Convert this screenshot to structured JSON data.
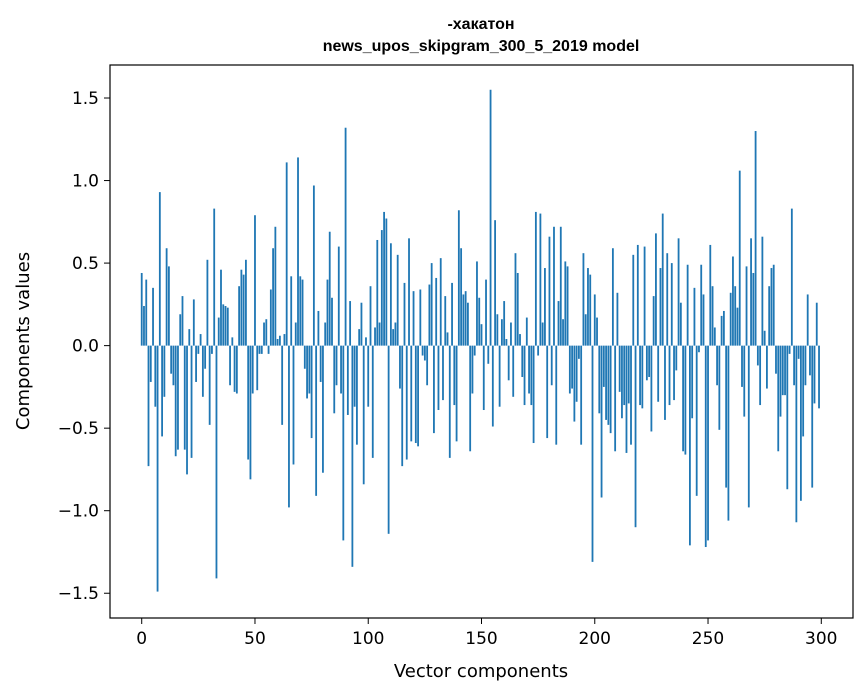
{
  "chart_data": {
    "type": "bar",
    "title": "-хакатон",
    "subtitle": "news_upos_skipgram_300_5_2019 model",
    "xlabel": "Vector components",
    "ylabel": "Components values",
    "xlim": [
      -14,
      314
    ],
    "ylim": [
      -1.65,
      1.7
    ],
    "xticks": [
      0,
      50,
      100,
      150,
      200,
      250,
      300
    ],
    "xtick_labels": [
      "0",
      "50",
      "100",
      "150",
      "200",
      "250",
      "300"
    ],
    "yticks": [
      1.5,
      1.0,
      0.5,
      0.0,
      -0.5,
      -1.0,
      -1.5
    ],
    "ytick_labels": [
      "1.5",
      "1.0",
      "0.5",
      "0.0",
      "−0.5",
      "−1.0",
      "−1.5"
    ],
    "grid": false,
    "series": [
      {
        "name": "components",
        "color": "#1f77b4",
        "x_start": 0,
        "values": [
          0.44,
          0.24,
          0.4,
          -0.73,
          -0.22,
          0.35,
          -0.37,
          -1.49,
          0.93,
          -0.55,
          -0.31,
          0.59,
          0.48,
          -0.17,
          -0.24,
          -0.67,
          -0.63,
          0.19,
          0.3,
          -0.63,
          -0.78,
          0.1,
          -0.68,
          0.28,
          -0.22,
          -0.05,
          0.07,
          -0.31,
          -0.14,
          0.52,
          -0.48,
          -0.05,
          0.83,
          -1.41,
          0.17,
          0.46,
          0.25,
          0.24,
          0.23,
          -0.24,
          0.05,
          -0.28,
          -0.29,
          0.36,
          0.46,
          0.43,
          0.52,
          -0.69,
          -0.81,
          -0.29,
          0.79,
          -0.27,
          -0.05,
          -0.05,
          0.14,
          0.16,
          -0.05,
          0.34,
          0.59,
          0.72,
          0.04,
          0.06,
          -0.48,
          0.07,
          1.11,
          -0.98,
          0.42,
          -0.72,
          0.14,
          1.14,
          0.42,
          0.4,
          -0.14,
          -0.32,
          -0.29,
          -0.56,
          0.97,
          -0.91,
          0.21,
          -0.22,
          -0.77,
          0.14,
          0.4,
          0.69,
          0.29,
          -0.41,
          -0.24,
          0.6,
          -0.29,
          -1.18,
          1.32,
          -0.42,
          0.27,
          -1.34,
          -0.37,
          -0.6,
          0.1,
          0.26,
          -0.84,
          0.05,
          -0.37,
          0.36,
          -0.68,
          0.11,
          0.64,
          0.14,
          0.7,
          0.81,
          0.77,
          -1.14,
          0.62,
          0.1,
          0.14,
          0.55,
          -0.26,
          -0.73,
          0.38,
          -0.69,
          0.65,
          -0.58,
          0.33,
          -0.59,
          -0.61,
          0.34,
          -0.06,
          -0.09,
          -0.24,
          0.37,
          0.5,
          -0.53,
          0.41,
          -0.39,
          0.53,
          -0.33,
          0.3,
          0.08,
          -0.68,
          0.38,
          -0.36,
          -0.58,
          0.82,
          0.59,
          0.31,
          0.33,
          0.26,
          -0.64,
          -0.29,
          -0.06,
          0.51,
          0.29,
          0.13,
          -0.39,
          0.4,
          -0.11,
          1.55,
          -0.49,
          0.76,
          0.19,
          -0.37,
          0.16,
          0.27,
          0.04,
          -0.21,
          0.14,
          -0.31,
          0.56,
          0.44,
          0.07,
          -0.19,
          -0.36,
          0.17,
          -0.29,
          -0.36,
          -0.59,
          0.81,
          -0.06,
          0.8,
          0.14,
          0.47,
          -0.56,
          0.66,
          -0.24,
          0.72,
          -0.6,
          0.27,
          0.72,
          0.16,
          0.51,
          0.48,
          -0.29,
          -0.26,
          -0.46,
          -0.34,
          -0.08,
          -0.6,
          0.56,
          0.19,
          0.47,
          0.43,
          -1.31,
          0.31,
          0.17,
          -0.41,
          -0.92,
          -0.25,
          -0.45,
          -0.48,
          -0.53,
          0.59,
          -0.64,
          0.32,
          -0.28,
          -0.44,
          -0.36,
          -0.65,
          -0.35,
          -0.6,
          0.55,
          -1.1,
          0.61,
          -0.36,
          -0.38,
          0.6,
          -0.21,
          -0.19,
          -0.52,
          0.3,
          0.68,
          -0.34,
          0.47,
          0.8,
          -0.45,
          0.56,
          -0.36,
          0.5,
          -0.33,
          -0.15,
          0.65,
          0.26,
          -0.64,
          -0.66,
          0.49,
          -1.21,
          -0.44,
          0.35,
          -0.91,
          -0.04,
          0.49,
          0.31,
          -1.22,
          -1.18,
          0.61,
          0.36,
          0.11,
          -0.24,
          -0.51,
          0.18,
          0.21,
          -0.86,
          -1.06,
          0.32,
          0.54,
          0.36,
          0.23,
          1.06,
          -0.25,
          -0.43,
          0.48,
          -0.98,
          0.65,
          0.44,
          1.3,
          -0.12,
          -0.36,
          0.66,
          0.09,
          -0.26,
          0.36,
          0.47,
          0.49,
          -0.17,
          -0.64,
          -0.43,
          -0.3,
          -0.3,
          -0.87,
          -0.05,
          0.83,
          -0.24,
          -1.07,
          -0.08,
          -0.94,
          -0.55,
          -0.24,
          0.31,
          -0.18,
          -0.86,
          -0.35,
          0.26,
          -0.38
        ]
      }
    ]
  }
}
